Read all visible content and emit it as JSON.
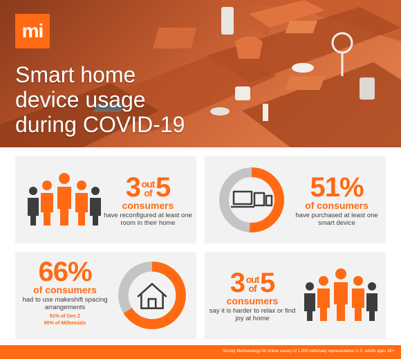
{
  "brand": {
    "logo_text": "mi",
    "accent_color": "#ff6a13"
  },
  "hero": {
    "title": "Smart home\ndevice usage\nduring COVID-19"
  },
  "stats": [
    {
      "value_main": "3",
      "value_of": "out of",
      "value_total": "5",
      "unit": "consumers",
      "description": "have reconfigured at least one room in their home",
      "icon": "people-group-icon"
    },
    {
      "value": "51%",
      "unit": "of consumers",
      "description": "have purchased at least one smart device",
      "icon": "devices-icon",
      "ring_percent": 51
    },
    {
      "value": "66%",
      "unit": "of consumers",
      "description": "had to use makeshift spacing arrangements",
      "sub_lines": [
        "91% of Gen Z",
        "80% of Millennials"
      ],
      "icon": "house-icon",
      "ring_percent": 66
    },
    {
      "value_main": "3",
      "value_of": "out of",
      "value_total": "5",
      "unit": "consumers",
      "description": "say it is harder to relax or find joy at home",
      "icon": "people-group-icon"
    }
  ],
  "footer": {
    "text": "Survey Methodology An online survey of 1,000 nationally representative U.S. adults ages 18+"
  }
}
